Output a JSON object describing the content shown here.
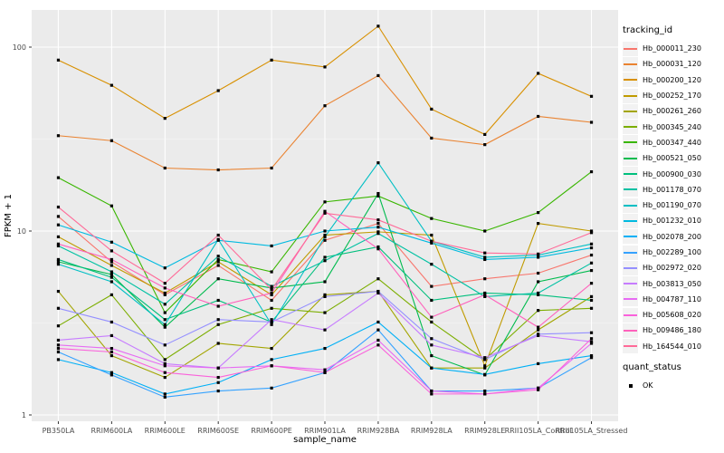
{
  "chart_data": {
    "type": "line",
    "title": "",
    "xlabel": "sample_name",
    "ylabel": "FPKM + 1",
    "y_scale": "log10",
    "ylim": [
      1,
      140
    ],
    "y_major_ticks": [
      1,
      10,
      100
    ],
    "y_tick_labels": [
      "1",
      "10",
      "100"
    ],
    "y_minor_ticks": [
      3.1623,
      31.623
    ],
    "grid": "on",
    "legend_position": "right",
    "point_shape": "filled-square",
    "point_color": "#000000",
    "categories": [
      "PB350LA",
      "RRIM600LA",
      "RRIM600LE",
      "RRIM600SE",
      "RRIM600PE",
      "RRIM901LA",
      "RRIM928BA",
      "RRIM928LA",
      "RRIM928LE",
      "RRII105LA_Control",
      "RRII105LA_Stressed"
    ],
    "series": [
      {
        "name": "Hb_000011_230",
        "color": "#F8766D",
        "values": [
          12.0,
          6.8,
          4.5,
          6.5,
          4.2,
          8.9,
          11.0,
          5.0,
          5.5,
          5.9,
          7.4
        ]
      },
      {
        "name": "Hb_000031_120",
        "color": "#EA8331",
        "values": [
          33,
          31,
          22,
          21.5,
          22,
          48,
          70,
          32,
          29.5,
          42,
          39
        ]
      },
      {
        "name": "Hb_000200_120",
        "color": "#D89000",
        "values": [
          85,
          62,
          41,
          58,
          85,
          78,
          130,
          46,
          33.5,
          72,
          54
        ]
      },
      {
        "name": "Hb_000252_170",
        "color": "#C09B00",
        "values": [
          9.3,
          6.5,
          4.6,
          6.8,
          4.5,
          9.5,
          9.9,
          9.5,
          1.85,
          11.0,
          10.0
        ]
      },
      {
        "name": "Hb_000261_260",
        "color": "#A3A500",
        "values": [
          4.7,
          2.1,
          1.6,
          2.45,
          2.3,
          4.5,
          4.7,
          1.8,
          1.8,
          2.9,
          4.4
        ]
      },
      {
        "name": "Hb_000345_240",
        "color": "#7CAE00",
        "values": [
          3.05,
          4.5,
          2.0,
          3.1,
          3.8,
          3.6,
          5.5,
          3.2,
          2.0,
          3.7,
          3.8
        ]
      },
      {
        "name": "Hb_000347_440",
        "color": "#39B600",
        "values": [
          19.5,
          13.7,
          3.6,
          7.0,
          6.0,
          14.4,
          15.5,
          11.7,
          10.0,
          12.6,
          21.0
        ]
      },
      {
        "name": "Hb_000521_050",
        "color": "#00BB4E",
        "values": [
          6.8,
          5.8,
          3.0,
          5.5,
          4.9,
          5.3,
          16.0,
          2.1,
          1.65,
          5.3,
          6.1
        ]
      },
      {
        "name": "Hb_000900_030",
        "color": "#00BF7D",
        "values": [
          7.0,
          5.6,
          3.3,
          4.2,
          3.2,
          7.2,
          8.2,
          4.2,
          4.6,
          4.5,
          4.2
        ]
      },
      {
        "name": "Hb_001178_070",
        "color": "#00C1A3",
        "values": [
          8.3,
          6.0,
          4.0,
          7.3,
          5.0,
          6.9,
          9.7,
          6.6,
          4.4,
          4.6,
          6.7
        ]
      },
      {
        "name": "Hb_001190_070",
        "color": "#00BFC4",
        "values": [
          6.6,
          5.3,
          3.1,
          9.0,
          3.1,
          9.3,
          23.5,
          8.8,
          7.2,
          7.4,
          8.5
        ]
      },
      {
        "name": "Hb_001232_010",
        "color": "#00BAE0",
        "values": [
          10.8,
          8.7,
          6.3,
          8.9,
          8.3,
          10.0,
          10.5,
          8.6,
          7.0,
          7.2,
          8.1
        ]
      },
      {
        "name": "Hb_002078_200",
        "color": "#00B0F6",
        "values": [
          2.0,
          1.7,
          1.3,
          1.5,
          2.0,
          2.3,
          3.2,
          1.8,
          1.66,
          1.9,
          2.1
        ]
      },
      {
        "name": "Hb_002289_100",
        "color": "#35A2FF",
        "values": [
          2.2,
          1.65,
          1.25,
          1.35,
          1.4,
          1.7,
          2.9,
          1.35,
          1.35,
          1.4,
          2.05
        ]
      },
      {
        "name": "Hb_002972_020",
        "color": "#9590FF",
        "values": [
          3.8,
          3.2,
          2.4,
          3.3,
          3.2,
          4.4,
          4.7,
          2.6,
          2.0,
          2.75,
          2.8
        ]
      },
      {
        "name": "Hb_003813_050",
        "color": "#C77CFF",
        "values": [
          2.55,
          2.7,
          1.9,
          1.8,
          3.3,
          2.9,
          4.6,
          2.4,
          2.05,
          2.7,
          2.5
        ]
      },
      {
        "name": "Hb_004787_110",
        "color": "#E76BF3",
        "values": [
          2.4,
          2.3,
          1.85,
          1.8,
          1.85,
          1.76,
          2.55,
          1.35,
          1.3,
          1.4,
          2.45
        ]
      },
      {
        "name": "Hb_005608_020",
        "color": "#FA62DB",
        "values": [
          2.3,
          2.2,
          1.7,
          1.6,
          1.85,
          1.7,
          2.4,
          1.3,
          1.3,
          1.37,
          2.6
        ]
      },
      {
        "name": "Hb_009486_180",
        "color": "#FF62BC",
        "values": [
          8.5,
          7.0,
          4.9,
          3.9,
          4.6,
          12.8,
          8.0,
          3.4,
          4.5,
          3.0,
          5.2
        ]
      },
      {
        "name": "Hb_164544_010",
        "color": "#FF6A98",
        "values": [
          13.5,
          7.8,
          5.2,
          9.5,
          4.8,
          12.5,
          11.5,
          8.8,
          7.6,
          7.5,
          9.8
        ]
      }
    ]
  },
  "legend": {
    "tracking_title": "tracking_id",
    "quant_title": "quant_status",
    "quant_items": [
      {
        "label": "OK"
      }
    ]
  },
  "style": {
    "panel_bg": "#EBEBEB",
    "grid_major": "#FFFFFF",
    "grid_minor": "#F7F7F7",
    "tick_color": "#333333",
    "tick_label_color": "#4D4D4D",
    "axis_title_color": "#000000",
    "legend_key_bg": "#F2F2F2"
  }
}
